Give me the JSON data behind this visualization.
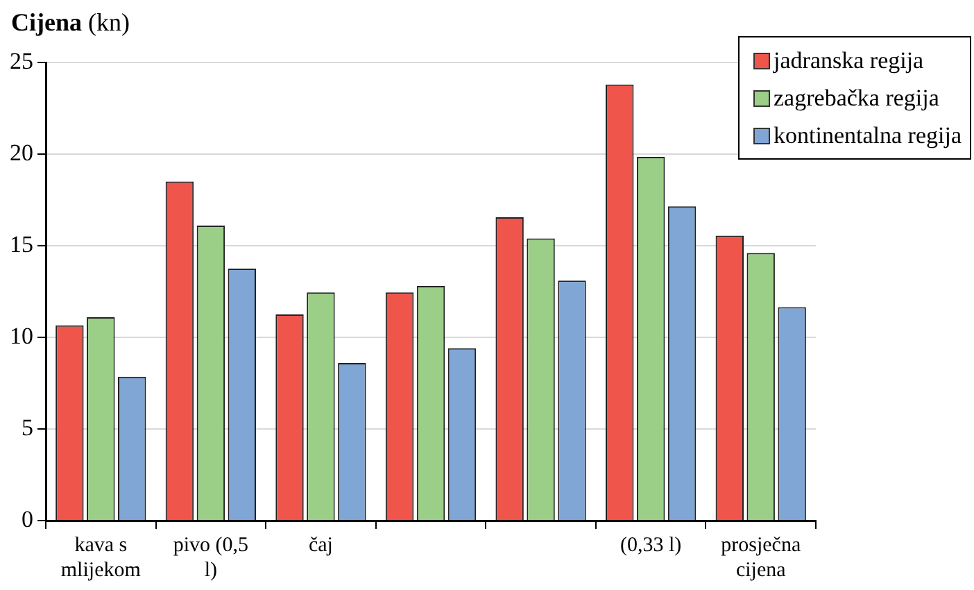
{
  "chart_data": {
    "type": "bar",
    "ylabel": "Cijena (kn)",
    "categories": [
      "kava s mlijekom",
      "pivo (0,5 l)",
      "čaj",
      null,
      null,
      "(0,33 l)",
      "prosječna cijena"
    ],
    "series": [
      {
        "name": "jadranska regija",
        "color": "#ef554b",
        "values": [
          10.65,
          18.5,
          11.25,
          12.45,
          16.55,
          23.8,
          15.55
        ]
      },
      {
        "name": "zagrebačka regija",
        "color": "#9bcf87",
        "values": [
          11.1,
          16.1,
          12.45,
          12.8,
          15.4,
          19.85,
          14.6
        ]
      },
      {
        "name": "kontinentalna regija",
        "color": "#80a6d6",
        "values": [
          7.85,
          13.75,
          8.6,
          9.4,
          13.1,
          17.15,
          11.65
        ]
      }
    ],
    "ylim": [
      0,
      25
    ],
    "yticks": [
      0,
      5,
      10,
      15,
      20,
      25
    ],
    "grid": "y",
    "legend": "top right"
  }
}
